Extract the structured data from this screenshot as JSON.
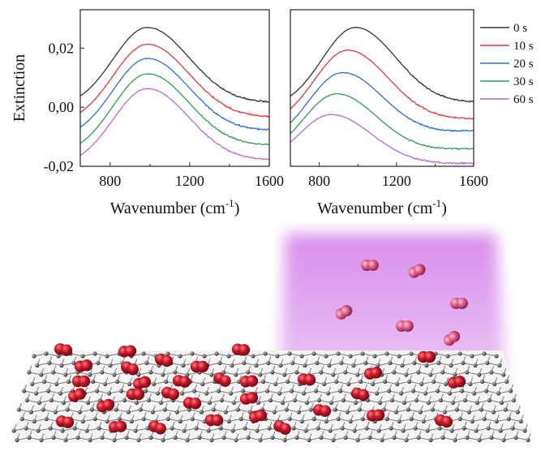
{
  "colors": {
    "0 s": "#333333",
    "10 s": "#e03a3e",
    "20 s": "#2f6fd0",
    "30 s": "#2f9e5a",
    "60 s": "#b86ad8",
    "light": "#d27ae8",
    "oxygen": "#c8162a",
    "carbon": "#555555"
  },
  "chart_data": [
    {
      "type": "line",
      "panel": "left",
      "ylabel": "Extinction",
      "xlabel": "Wavenumber (cm",
      "xlabel_sup": "-1",
      "xlabel_close": ")",
      "xlim": [
        650,
        1600
      ],
      "ylim": [
        -0.02,
        0.033
      ],
      "xticks": [
        "800",
        "1200",
        "1600"
      ],
      "yticks": [
        "0,02",
        "0,00",
        "-0,02"
      ],
      "peak_x": 985,
      "series": [
        {
          "name": "0 s",
          "peak": 0.027,
          "start": 0.0,
          "end": 0.0015
        },
        {
          "name": "10 s",
          "peak": 0.0213,
          "start": -0.0055,
          "end": -0.0035
        },
        {
          "name": "20 s",
          "peak": 0.0165,
          "start": -0.0105,
          "end": -0.008
        },
        {
          "name": "30 s",
          "peak": 0.0113,
          "start": -0.016,
          "end": -0.013
        },
        {
          "name": "60 s",
          "peak": 0.0063,
          "start": -0.02,
          "end": -0.018
        }
      ]
    },
    {
      "type": "line",
      "panel": "right",
      "xlabel": "Wavenumber (cm",
      "xlabel_sup": "-1",
      "xlabel_close": ")",
      "xlim": [
        650,
        1600
      ],
      "ylim": [
        -0.02,
        0.033
      ],
      "xticks": [
        "800",
        "1200",
        "1600"
      ],
      "legend_position": "right",
      "series": [
        {
          "name": "0 s",
          "peak_x": 985,
          "peak": 0.027,
          "start": 0.0,
          "end": 0.0015
        },
        {
          "name": "10 s",
          "peak_x": 945,
          "peak": 0.0193,
          "start": -0.006,
          "end": -0.004
        },
        {
          "name": "20 s",
          "peak_x": 915,
          "peak": 0.0117,
          "start": -0.012,
          "end": -0.008
        },
        {
          "name": "30 s",
          "peak_x": 885,
          "peak": 0.0045,
          "start": -0.017,
          "end": -0.014
        },
        {
          "name": "60 s",
          "peak_x": 860,
          "peak": -0.0025,
          "start": -0.02,
          "end": -0.019
        }
      ]
    }
  ]
}
